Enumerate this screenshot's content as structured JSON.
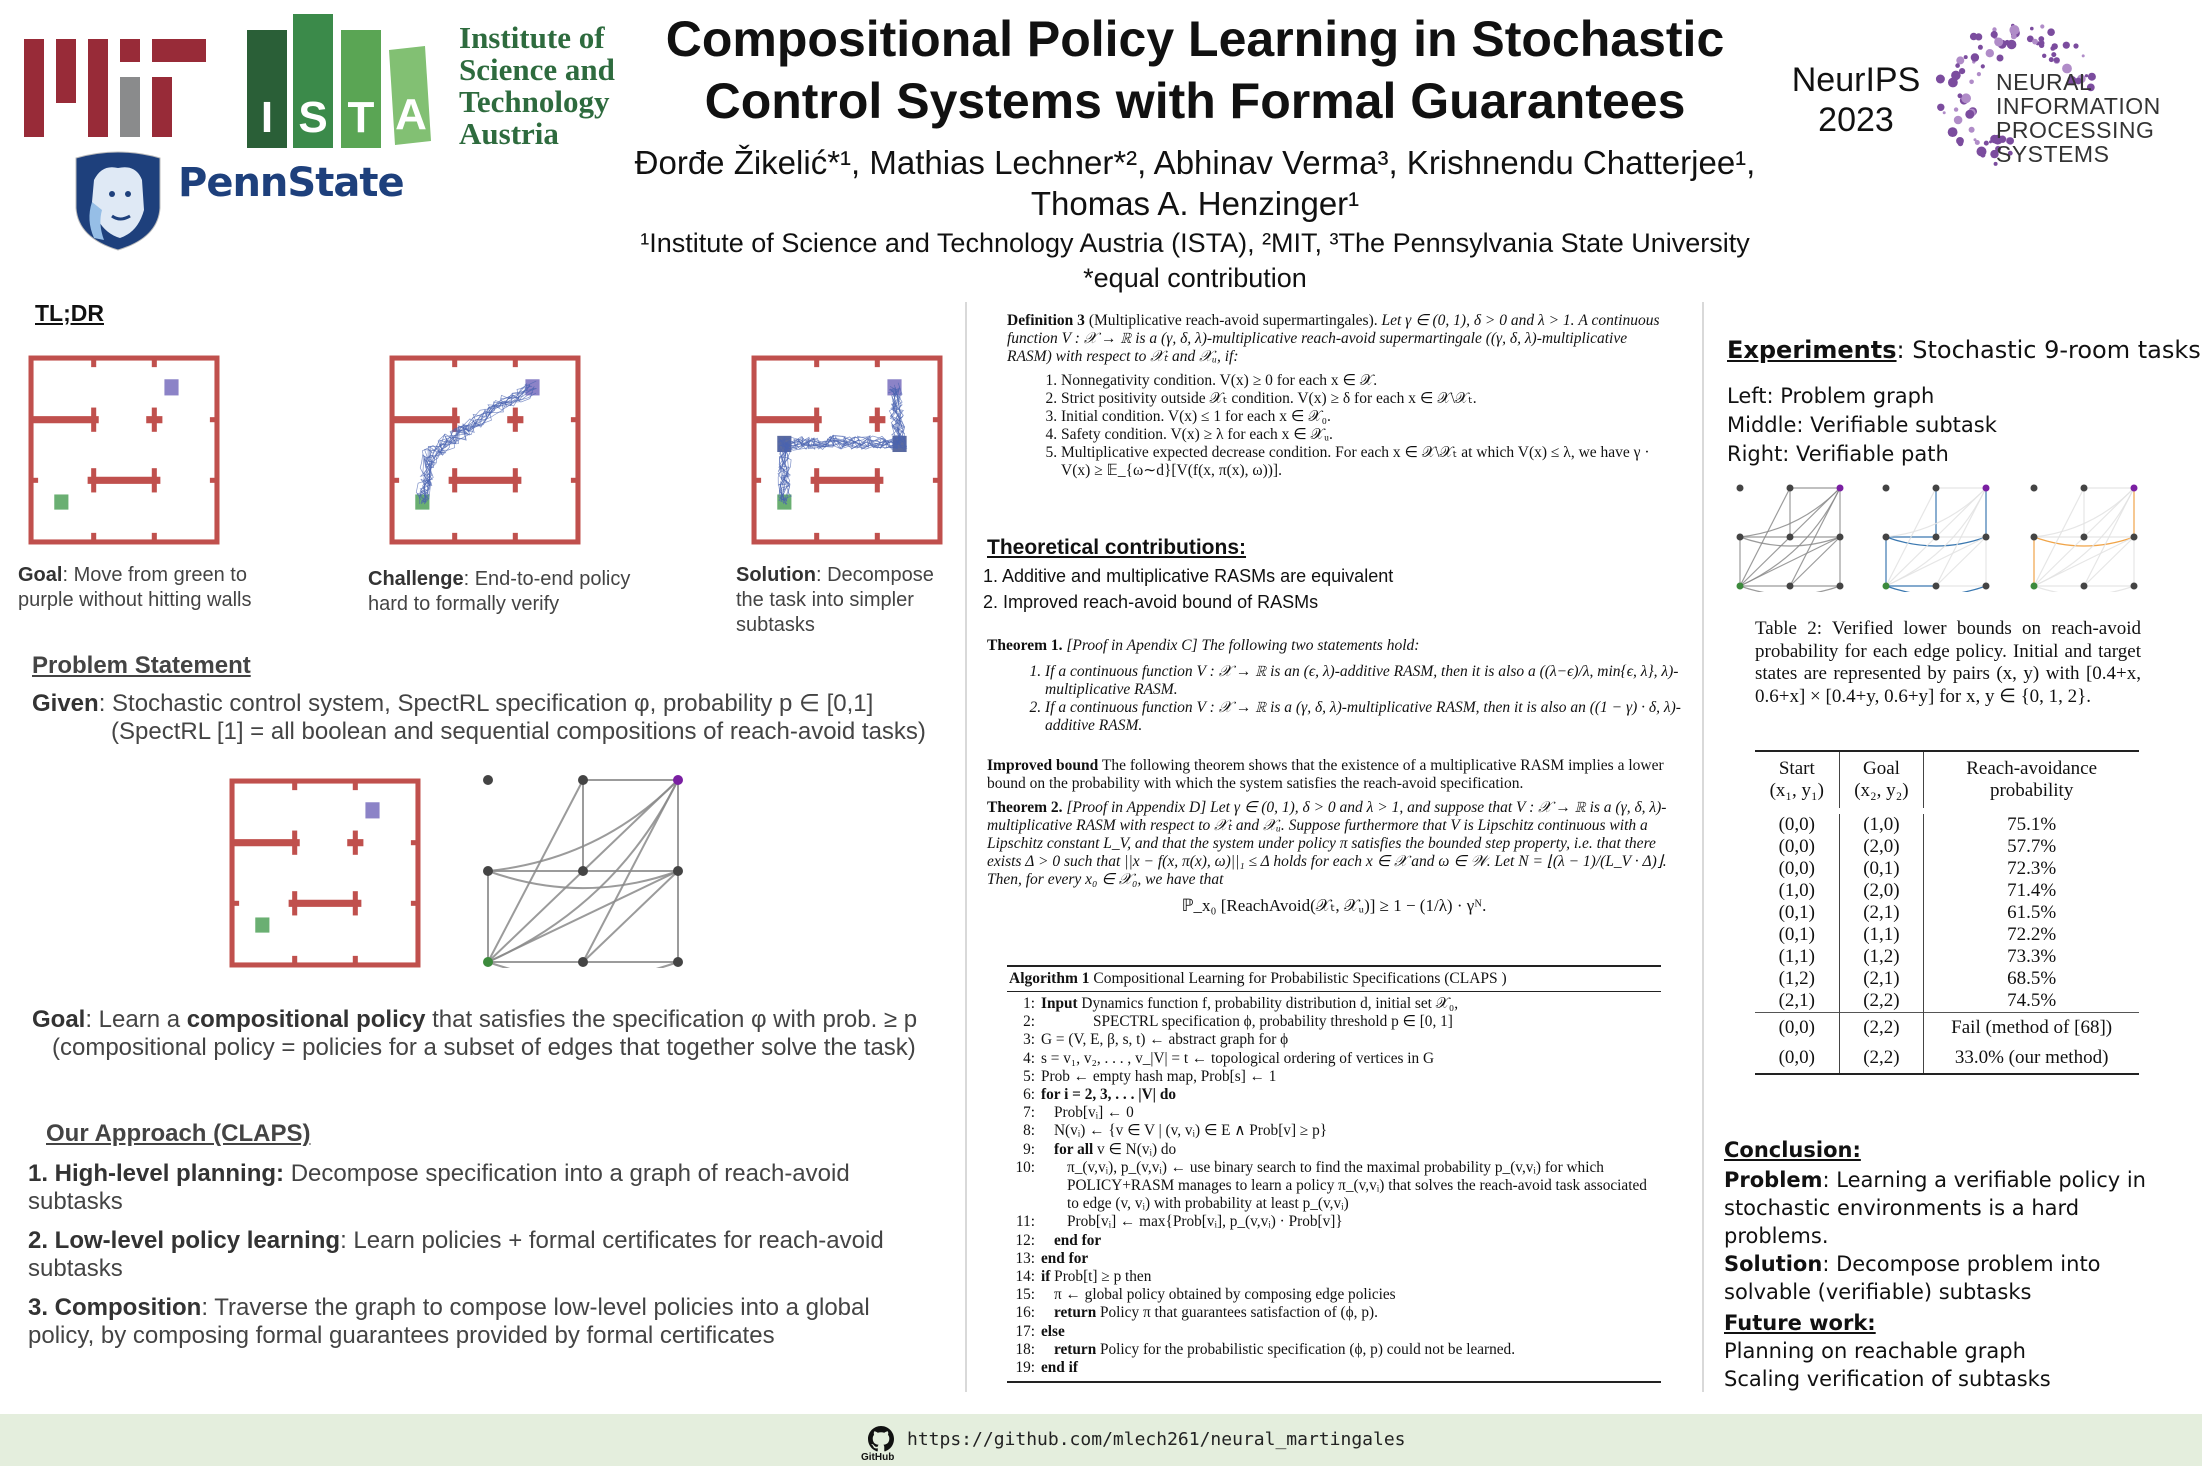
{
  "header": {
    "title_lines": [
      "Compositional Policy Learning in Stochastic",
      "Control Systems with Formal Guarantees"
    ],
    "authors_lines": [
      "Đorđe Žikelić*¹, Mathias Lechner*², Abhinav Verma³, Krishnendu Chatterjee¹,",
      "Thomas A. Henzinger¹"
    ],
    "affiliations": "¹Institute of Science and Technology Austria (ISTA), ²MIT, ³The Pennsylvania State University",
    "equal_contribution": "*equal contribution",
    "logos": {
      "mit": "MIT",
      "ista_letters": [
        "I",
        "S",
        "T",
        "A"
      ],
      "ista_text_lines": [
        "Institute of",
        "Science and",
        "Technology",
        "Austria"
      ],
      "pennstate": "PennState",
      "neurips_lines": [
        "NeurIPS",
        "2023"
      ],
      "neurips_logo_lines": [
        "NEURAL",
        "INFORMATION",
        "PROCESSING",
        "SYSTEMS"
      ]
    },
    "colors": {
      "mit_red": "#982b38",
      "mit_grey": "#8a8b8c",
      "ista_green": "#2e6b3e",
      "penn_blue": "#1e407c",
      "neurips_purple": "#7b4c9e"
    }
  },
  "left": {
    "tldr_heading": "TL;DR",
    "tldr_captions": [
      {
        "bold": "Goal",
        "text": ": Move from green to purple without hitting walls"
      },
      {
        "bold": "Challenge",
        "text": ": End-to-end policy hard to formally verify"
      },
      {
        "bold": "Solution",
        "text": ": Decompose the task into simpler subtasks"
      }
    ],
    "problem_heading": "Problem Statement",
    "given_bold": "Given",
    "given_text": ": Stochastic control system, SpectRL specification φ, probability p ∈ [0,1]",
    "given_note": "(SpectRL [1] = all boolean and sequential compositions of reach-avoid tasks)",
    "goal_bold1": "Goal",
    "goal_text1": ": Learn a ",
    "goal_bold2": "compositional policy",
    "goal_text2": " that satisfies the specification φ with prob.  ≥ p",
    "goal_note": "(compositional policy = policies for a subset of edges that together solve the task)",
    "approach_heading": "Our Approach (CLAPS)",
    "approach_items": [
      {
        "bold": "1. High-level planning:",
        "text": " Decompose specification into a graph of reach-avoid subtasks"
      },
      {
        "bold": "2. Low-level policy learning",
        "text": ": Learn policies + formal certificates for reach-avoid subtasks"
      },
      {
        "bold": "3. Composition",
        "text": ": Traverse the graph to compose low-level policies into a global policy, by composing formal guarantees provided by formal certificates"
      }
    ],
    "maze_colors": {
      "wall": "#c0504d",
      "start": "#6aaf72",
      "goal": "#8c83c7",
      "trajectory": "#4a64b0"
    }
  },
  "middle": {
    "definition": {
      "label": "Definition 3",
      "name": "(Multiplicative reach-avoid supermartingales).",
      "body": "Let γ ∈ (0, 1), δ > 0 and λ > 1. A continuous function V : 𝒳 → ℝ is a (γ, δ, λ)-multiplicative reach-avoid supermartingale ((γ, δ, λ)-multiplicative RASM) with respect to 𝒳ₜ and 𝒳ᵤ, if:",
      "conditions": [
        "Nonnegativity condition. V(x) ≥ 0 for each x ∈ 𝒳.",
        "Strict positivity outside 𝒳ₜ condition. V(x) ≥ δ for each x ∈ 𝒳\\𝒳ₜ.",
        "Initial condition. V(x) ≤ 1 for each x ∈ 𝒳₀.",
        "Safety condition. V(x) ≥ λ for each x ∈ 𝒳ᵤ.",
        "Multiplicative expected decrease condition. For each x ∈ 𝒳\\𝒳ₜ at which V(x) ≤ λ, we have γ · V(x) ≥ 𝔼_{ω∼d}[V(f(x, π(x), ω))]."
      ]
    },
    "contributions_heading": "Theoretical contributions:",
    "contributions": [
      "1. Additive and multiplicative RASMs are equivalent",
      "2. Improved reach-avoid bound of RASMs"
    ],
    "theorem1": {
      "label": "Theorem 1.",
      "intro": "[Proof in Apendix C] The following two statements hold:",
      "items": [
        "If a continuous function V : 𝒳 → ℝ is an (ϵ, λ)-additive RASM, then it is also a ((λ−ϵ)/λ, min{ϵ, λ}, λ)-multiplicative RASM.",
        "If a continuous function V : 𝒳 → ℝ is a (γ, δ, λ)-multiplicative RASM, then it is also an ((1 − γ) · δ, λ)-additive RASM."
      ]
    },
    "improved_bound": {
      "label": "Improved bound",
      "text": " The following theorem shows that the existence of a multiplicative RASM implies a lower bound on the probability with which the system satisfies the reach-avoid specification."
    },
    "theorem2": {
      "label": "Theorem 2.",
      "text": "[Proof in Appendix D] Let γ ∈ (0, 1), δ > 0 and λ > 1, and suppose that V : 𝒳 → ℝ is a (γ, δ, λ)-multiplicative RASM with respect to 𝒳ₜ and 𝒳ᵤ. Suppose furthermore that V is Lipschitz continuous with a Lipschitz constant L_V, and that the system under policy π satisfies the bounded step property, i.e. that there exists Δ > 0 such that ||x − f(x, π(x), ω)||₁ ≤ Δ holds for each x ∈ 𝒳 and ω ∈ 𝒲. Let N = ⌊(λ − 1)/(L_V · Δ)⌋. Then, for every x₀ ∈ 𝒳₀, we have that",
      "formula": "ℙ_x₀ [ReachAvoid(𝒳ₜ, 𝒳ᵤ)] ≥ 1 − (1/λ) · γᴺ."
    },
    "algorithm": {
      "label": "Algorithm 1",
      "title": "Compositional Learning for Probabilistic Specifications (CLAPS )",
      "lines": [
        {
          "n": "1:",
          "kw": "Input",
          "text": " Dynamics function f, probability distribution d, initial set 𝒳₀,",
          "indent": 0
        },
        {
          "n": "2:",
          "kw": "",
          "text": "SPECTRL specification ϕ, probability threshold p ∈ [0, 1]",
          "indent": 4
        },
        {
          "n": "3:",
          "kw": "",
          "text": "G = (V, E, β, s, t) ← abstract graph for ϕ",
          "indent": 0
        },
        {
          "n": "4:",
          "kw": "",
          "text": "s = v₁, v₂, . . . , v_|V| = t ← topological ordering of vertices in G",
          "indent": 0
        },
        {
          "n": "5:",
          "kw": "",
          "text": "Prob ← empty hash map, Prob[s] ← 1",
          "indent": 0
        },
        {
          "n": "6:",
          "kw": "for i = 2, 3, . . . |V| do",
          "text": "",
          "indent": 0
        },
        {
          "n": "7:",
          "kw": "",
          "text": "Prob[vᵢ] ← 0",
          "indent": 1
        },
        {
          "n": "8:",
          "kw": "",
          "text": "N(vᵢ) ← {v ∈ V | (v, vᵢ) ∈ E ∧ Prob[v] ≥ p}",
          "indent": 1
        },
        {
          "n": "9:",
          "kw": "for all",
          "text": " v ∈ N(vᵢ) do",
          "indent": 1
        },
        {
          "n": "10:",
          "kw": "",
          "text": "π_(v,vᵢ), p_(v,vᵢ) ← use binary search to find the maximal probability p_(v,vᵢ) for which POLICY+RASM manages to learn a policy π_(v,vᵢ) that solves the reach-avoid task associated to edge (v, vᵢ) with probability at least p_(v,vᵢ)",
          "indent": 2
        },
        {
          "n": "11:",
          "kw": "",
          "text": "Prob[vᵢ] ← max{Prob[vᵢ], p_(v,vᵢ) · Prob[v]}",
          "indent": 2
        },
        {
          "n": "12:",
          "kw": "end for",
          "text": "",
          "indent": 1
        },
        {
          "n": "13:",
          "kw": "end for",
          "text": "",
          "indent": 0
        },
        {
          "n": "14:",
          "kw": "if",
          "text": " Prob[t] ≥ p then",
          "indent": 0
        },
        {
          "n": "15:",
          "kw": "",
          "text": "π ← global policy obtained by composing edge policies",
          "indent": 1
        },
        {
          "n": "16:",
          "kw": "return",
          "text": "  Policy π that guarantees satisfaction of (ϕ, p).",
          "indent": 1
        },
        {
          "n": "17:",
          "kw": "else",
          "text": "",
          "indent": 0
        },
        {
          "n": "18:",
          "kw": "return",
          "text": "  Policy for the probabilistic specification (ϕ, p) could not be learned.",
          "indent": 1
        },
        {
          "n": "19:",
          "kw": "end if",
          "text": "",
          "indent": 0
        }
      ]
    }
  },
  "right": {
    "experiments_heading": "Experiments",
    "experiments_sub": ": Stochastic 9-room tasks",
    "panel_labels": [
      "Left: Problem graph",
      "Middle: Verifiable subtask",
      "Right: Verifiable path"
    ],
    "graph_colors": {
      "edge": "#8a8a8a",
      "faded": "#e2e2e2",
      "subtask": "#3b78b0",
      "path": "#f0a448",
      "node": "#444444",
      "start": "#3c8a3c",
      "goal": "#7a1fa2"
    },
    "table_caption": "Table 2: Verified lower bounds on reach-avoid probability for each edge policy. Initial and target states are represented by pairs (x, y) with [0.4+x, 0.6+x] × [0.4+y, 0.6+y] for x, y ∈ {0, 1, 2}.",
    "table_headers": [
      [
        "Start",
        "(x₁, y₁)"
      ],
      [
        "Goal",
        "(x₂, y₂)"
      ],
      [
        "Reach-avoidance",
        "probability"
      ]
    ],
    "table_rows": [
      [
        "(0,0)",
        "(1,0)",
        "75.1%"
      ],
      [
        "(0,0)",
        "(2,0)",
        "57.7%"
      ],
      [
        "(0,0)",
        "(0,1)",
        "72.3%"
      ],
      [
        "(1,0)",
        "(2,0)",
        "71.4%"
      ],
      [
        "(0,1)",
        "(2,1)",
        "61.5%"
      ],
      [
        "(0,1)",
        "(1,1)",
        "72.2%"
      ],
      [
        "(1,1)",
        "(1,2)",
        "73.3%"
      ],
      [
        "(1,2)",
        "(2,1)",
        "68.5%"
      ],
      [
        "(2,1)",
        "(2,2)",
        "74.5%"
      ]
    ],
    "table_rows_final": [
      [
        "(0,0)",
        "(2,2)",
        "Fail (method of [68])"
      ],
      [
        "(0,0)",
        "(2,2)",
        "33.0% (our method)"
      ]
    ],
    "conclusion_heading": "Conclusion:",
    "conclusion": [
      {
        "bold": "Problem",
        "text": ": Learning a verifiable policy in stochastic environments is a hard problems."
      },
      {
        "bold": "Solution",
        "text": ": Decompose problem into solvable (verifiable) subtasks"
      }
    ],
    "future_heading": "Future work:",
    "future": [
      "Planning on reachable graph",
      "Scaling verification of subtasks"
    ]
  },
  "footer": {
    "github_label": "GitHub",
    "url": "https://github.com/mlech261/neural_martingales",
    "background": "#e4eedd"
  }
}
